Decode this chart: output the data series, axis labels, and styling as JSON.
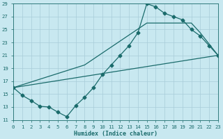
{
  "xlabel": "Humidex (Indice chaleur)",
  "bg_color": "#c8e8f0",
  "grid_color": "#a8ccd8",
  "line_color": "#1a6b6b",
  "xlim": [
    0,
    23
  ],
  "ylim": [
    11,
    29
  ],
  "yticks": [
    11,
    13,
    15,
    17,
    19,
    21,
    23,
    25,
    27,
    29
  ],
  "xticks": [
    0,
    1,
    2,
    3,
    4,
    5,
    6,
    7,
    8,
    9,
    10,
    11,
    12,
    13,
    14,
    15,
    16,
    17,
    18,
    19,
    20,
    21,
    22,
    23
  ],
  "curve1_x": [
    0,
    1,
    2,
    3,
    4,
    5,
    6,
    7,
    8,
    9,
    10,
    11,
    12,
    13,
    14,
    15,
    16,
    17,
    18,
    19,
    20,
    21,
    22,
    23
  ],
  "curve1_y": [
    16,
    14.8,
    14.0,
    13.1,
    13.0,
    12.2,
    11.5,
    13.2,
    14.5,
    16.0,
    18.0,
    19.5,
    21.0,
    22.5,
    24.5,
    29.0,
    28.5,
    27.5,
    27.0,
    26.5,
    25.0,
    24.0,
    22.5,
    21.0
  ],
  "curve2_x": [
    0,
    23
  ],
  "curve2_y": [
    16,
    21
  ],
  "curve3_x": [
    0,
    8,
    15,
    20,
    21,
    23
  ],
  "curve3_y": [
    16,
    19.5,
    26.0,
    26.0,
    24.5,
    21.0
  ],
  "marker": "D",
  "markersize": 2.5,
  "linewidth": 0.9,
  "tick_fontsize": 5.2,
  "xlabel_fontsize": 6.0
}
